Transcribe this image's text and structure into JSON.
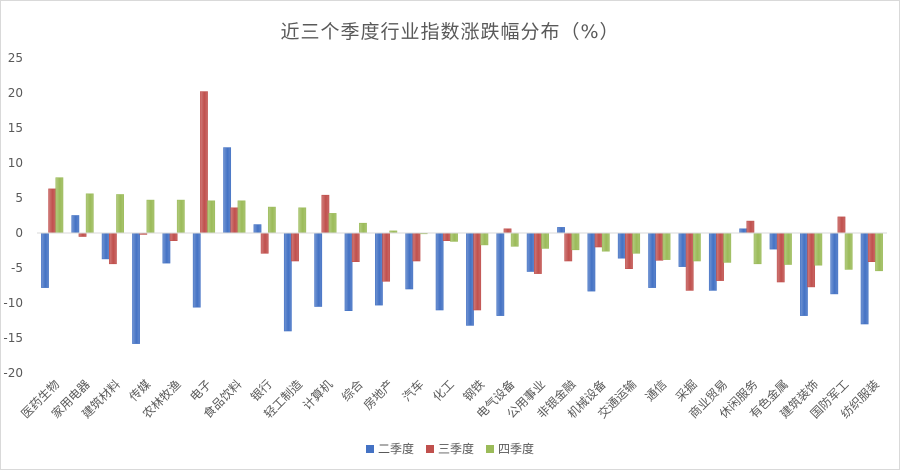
{
  "chart_data": {
    "type": "bar",
    "title": "近三个季度行业指数涨跌幅分布（%）",
    "ylim": [
      -20,
      25
    ],
    "yticks": [
      -20,
      -15,
      -10,
      -5,
      0,
      5,
      10,
      15,
      20,
      25
    ],
    "ytick_labels": [
      "-20",
      "-15",
      "-10",
      "-5",
      "0",
      "5",
      "10",
      "15",
      "20",
      "25"
    ],
    "grid": false,
    "legend_position": "bottom",
    "categories": [
      "医药生物",
      "家用电器",
      "建筑材料",
      "传媒",
      "农林牧渔",
      "电子",
      "食品饮料",
      "银行",
      "轻工制造",
      "计算机",
      "综合",
      "房地产",
      "汽车",
      "化工",
      "钢铁",
      "电气设备",
      "公用事业",
      "非银金融",
      "机械设备",
      "交通运输",
      "通信",
      "采掘",
      "商业贸易",
      "休闲服务",
      "有色金属",
      "建筑装饰",
      "国防军工",
      "纺织服装"
    ],
    "series": [
      {
        "name": "二季度",
        "color": "#4472c4",
        "values": [
          -7.8,
          2.5,
          -3.7,
          -15.8,
          -4.3,
          -10.6,
          12.2,
          1.2,
          -14.0,
          -10.5,
          -11.1,
          -10.3,
          -8.0,
          -11.0,
          -13.2,
          -11.8,
          -5.5,
          0.8,
          -8.3,
          -3.6,
          -7.8,
          -4.8,
          -8.2,
          0.6,
          -2.3,
          -11.8,
          -8.7,
          -13.0
        ]
      },
      {
        "name": "三季度",
        "color": "#c0504d",
        "values": [
          6.3,
          -0.5,
          -4.4,
          -0.2,
          -1.1,
          20.2,
          3.6,
          -2.9,
          -4.0,
          5.4,
          -4.1,
          -6.9,
          -4.0,
          -1.1,
          -11.0,
          0.6,
          -5.8,
          -4.0,
          -2.0,
          -5.1,
          -3.9,
          -8.2,
          -6.8,
          1.7,
          -7.0,
          -7.7,
          2.3,
          -4.1
        ]
      },
      {
        "name": "四季度",
        "color": "#9bbb59",
        "values": [
          7.9,
          5.6,
          5.5,
          4.7,
          4.7,
          4.6,
          4.6,
          3.7,
          3.6,
          2.8,
          1.4,
          0.3,
          -0.1,
          -1.2,
          -1.7,
          -1.9,
          -2.2,
          -2.4,
          -2.6,
          -2.9,
          -3.8,
          -4.0,
          -4.2,
          -4.4,
          -4.5,
          -4.6,
          -5.2,
          -5.4
        ]
      }
    ]
  }
}
